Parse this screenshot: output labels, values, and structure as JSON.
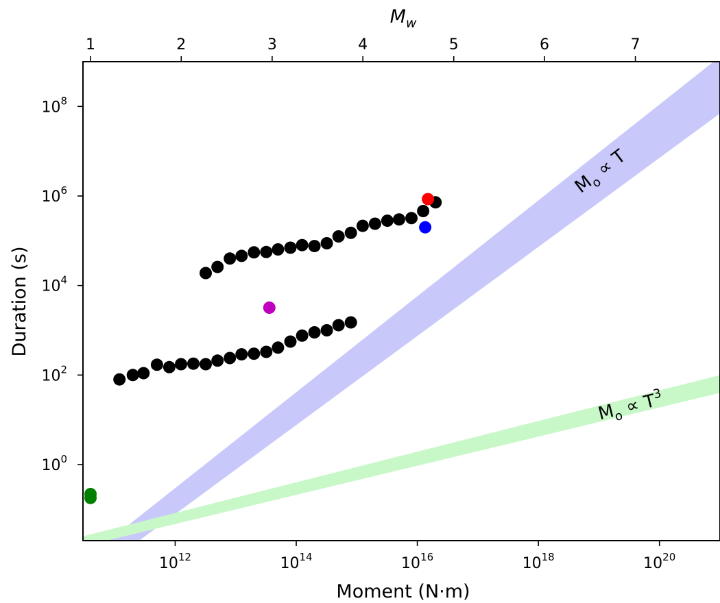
{
  "chart_data": {
    "type": "scatter",
    "xlabel": "Moment (N·m)",
    "ylabel": "Duration (s)",
    "top_axis_label": "M",
    "top_axis_label_sub": "w",
    "x_scale": "log",
    "y_scale": "log",
    "xlim": [
      30000000000.0,
      1e+21
    ],
    "ylim": [
      0.02,
      1000000000.0
    ],
    "grid": false,
    "x_ticks": [
      {
        "value": 1000000000000.0,
        "base": "10",
        "exp": "12"
      },
      {
        "value": 100000000000000.0,
        "base": "10",
        "exp": "14"
      },
      {
        "value": 1e+16,
        "base": "10",
        "exp": "16"
      },
      {
        "value": 1e+18,
        "base": "10",
        "exp": "18"
      },
      {
        "value": 1e+20,
        "base": "10",
        "exp": "20"
      }
    ],
    "y_ticks": [
      {
        "value": 1,
        "base": "10",
        "exp": "0"
      },
      {
        "value": 100,
        "base": "10",
        "exp": "2"
      },
      {
        "value": 10000,
        "base": "10",
        "exp": "4"
      },
      {
        "value": 1000000,
        "base": "10",
        "exp": "6"
      },
      {
        "value": 100000000,
        "base": "10",
        "exp": "8"
      }
    ],
    "top_ticks": [
      {
        "label": "1",
        "moment": 40000000000.0
      },
      {
        "label": "2",
        "moment": 1260000000000.0
      },
      {
        "label": "3",
        "moment": 40000000000000.0
      },
      {
        "label": "4",
        "moment": 1260000000000000.0
      },
      {
        "label": "5",
        "moment": 4e+16
      },
      {
        "label": "6",
        "moment": 1.26e+18
      },
      {
        "label": "7",
        "moment": 4e+19
      }
    ],
    "bands": [
      {
        "name": "M_o ∝ T",
        "label_main": "M",
        "label_sub": "o",
        "label_rest": " ∝ T",
        "label_sup": "",
        "color": "#c8c8fa",
        "lower": [
          [
            120000000000.0,
            0.0095
          ],
          [
            1e+21,
            70000000.0
          ]
        ],
        "upper": [
          [
            40000000000.0,
            0.0095
          ],
          [
            1e+21,
            1300000000.0
          ]
        ],
        "label_at": [
          1.2e+19,
          2800000.0
        ]
      },
      {
        "name": "M_o ∝ T^3",
        "label_main": "M",
        "label_sub": "o",
        "label_rest": " ∝ T",
        "label_sup": "3",
        "color": "#c8f8c8",
        "lower": [
          [
            30000000000.0,
            0.015
          ],
          [
            1e+21,
            40
          ]
        ],
        "upper": [
          [
            30000000000.0,
            0.025
          ],
          [
            1e+21,
            100
          ]
        ],
        "label_at": [
          3.5e+19,
          15
        ]
      }
    ],
    "series": [
      {
        "color": "#000000",
        "points": [
          [
            3200000000000.0,
            19000
          ],
          [
            5000000000000.0,
            26000
          ],
          [
            8000000000000.0,
            40000
          ],
          [
            12500000000000.0,
            46000
          ],
          [
            20000000000000.0,
            55000
          ],
          [
            32000000000000.0,
            56000
          ],
          [
            50000000000000.0,
            64000
          ],
          [
            80000000000000.0,
            70000
          ],
          [
            125000000000000.0,
            80000
          ],
          [
            200000000000000.0,
            76000
          ],
          [
            320000000000000.0,
            88000
          ],
          [
            500000000000000.0,
            125000
          ],
          [
            800000000000000.0,
            150000
          ],
          [
            1250000000000000.0,
            215000
          ],
          [
            2000000000000000.0,
            240000
          ],
          [
            3200000000000000.0,
            280000
          ],
          [
            5000000000000000.0,
            300000
          ],
          [
            8000000000000000.0,
            320000
          ],
          [
            1.25e+16,
            460000
          ],
          [
            2e+16,
            720000
          ]
        ]
      },
      {
        "color": "#000000",
        "points": [
          [
            120000000000.0,
            80
          ],
          [
            200000000000.0,
            100
          ],
          [
            300000000000.0,
            110
          ],
          [
            500000000000.0,
            170
          ],
          [
            800000000000.0,
            150
          ],
          [
            1250000000000.0,
            175
          ],
          [
            2000000000000.0,
            180
          ],
          [
            3200000000000.0,
            175
          ],
          [
            5000000000000.0,
            210
          ],
          [
            8000000000000.0,
            240
          ],
          [
            12500000000000.0,
            290
          ],
          [
            20000000000000.0,
            300
          ],
          [
            32000000000000.0,
            330
          ],
          [
            50000000000000.0,
            410
          ],
          [
            80000000000000.0,
            560
          ],
          [
            125000000000000.0,
            760
          ],
          [
            200000000000000.0,
            900
          ],
          [
            320000000000000.0,
            1000
          ],
          [
            500000000000000.0,
            1300
          ],
          [
            800000000000000.0,
            1500
          ]
        ]
      },
      {
        "color": "#ff0000",
        "points": [
          [
            1.5e+16,
            850000
          ]
        ]
      },
      {
        "color": "#0000ff",
        "points": [
          [
            1.35e+16,
            200000
          ]
        ]
      },
      {
        "color": "#bf00bf",
        "points": [
          [
            36000000000000.0,
            3200
          ]
        ]
      },
      {
        "color": "#008000",
        "points": [
          [
            40000000000.0,
            0.22
          ],
          [
            40000000000.0,
            0.18
          ]
        ]
      }
    ]
  }
}
